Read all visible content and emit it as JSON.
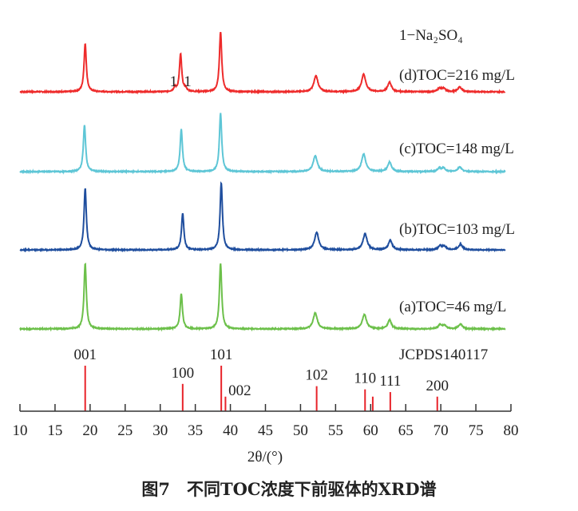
{
  "chart_data": {
    "type": "line",
    "caption": "图7　不同TOC浓度下前驱体的XRD谱",
    "xlabel": "2θ/(°)",
    "ylabel": "",
    "xlim": [
      10,
      80
    ],
    "xticks": [
      10,
      15,
      20,
      25,
      30,
      35,
      40,
      45,
      50,
      55,
      60,
      65,
      70,
      75,
      80
    ],
    "grid": false,
    "phase_label": "1−Na₂SO₄",
    "series": [
      {
        "name": "(d)TOC=216 mg/L",
        "color": "#ee2b2b",
        "peaks": [
          [
            19.3,
            60
          ],
          [
            32.1,
            5
          ],
          [
            32.9,
            47
          ],
          [
            33.6,
            4
          ],
          [
            38.6,
            75
          ],
          [
            52.2,
            20
          ],
          [
            59.0,
            22
          ],
          [
            62.7,
            12
          ],
          [
            69.8,
            4
          ],
          [
            70.4,
            4
          ],
          [
            72.7,
            6
          ]
        ],
        "annotations": [
          {
            "x": 31.9,
            "text": "1"
          },
          {
            "x": 33.9,
            "text": "1"
          }
        ]
      },
      {
        "name": "(c)TOC=148 mg/L",
        "color": "#5ec6d6",
        "peaks": [
          [
            19.2,
            58
          ],
          [
            33.0,
            53
          ],
          [
            38.6,
            73
          ],
          [
            52.1,
            20
          ],
          [
            59.0,
            22
          ],
          [
            62.7,
            12
          ],
          [
            69.8,
            4
          ],
          [
            70.4,
            4
          ],
          [
            72.7,
            6
          ]
        ]
      },
      {
        "name": "(b)TOC=103 mg/L",
        "color": "#1f4e9e",
        "peaks": [
          [
            19.3,
            77
          ],
          [
            33.2,
            46
          ],
          [
            38.7,
            84
          ],
          [
            52.3,
            22
          ],
          [
            59.2,
            20
          ],
          [
            62.8,
            12
          ],
          [
            69.9,
            5
          ],
          [
            70.5,
            4
          ],
          [
            72.8,
            7
          ]
        ]
      },
      {
        "name": "(a)TOC=46 mg/L",
        "color": "#6cc04a",
        "peaks": [
          [
            19.3,
            82
          ],
          [
            33.0,
            44
          ],
          [
            38.6,
            82
          ],
          [
            52.1,
            20
          ],
          [
            59.1,
            18
          ],
          [
            62.7,
            11
          ],
          [
            69.9,
            5
          ],
          [
            70.5,
            4
          ],
          [
            72.8,
            6
          ]
        ]
      }
    ],
    "reference": {
      "name": "JCPDS140117",
      "color": "#e8232a",
      "lines": [
        {
          "x": 19.3,
          "intensity": 100,
          "hkl": "001"
        },
        {
          "x": 33.2,
          "intensity": 60,
          "hkl": "100"
        },
        {
          "x": 38.7,
          "intensity": 100,
          "hkl": "101"
        },
        {
          "x": 39.3,
          "intensity": 32,
          "hkl": "002"
        },
        {
          "x": 52.3,
          "intensity": 55,
          "hkl": "102"
        },
        {
          "x": 59.2,
          "intensity": 48,
          "hkl": "110"
        },
        {
          "x": 60.3,
          "intensity": 32,
          "hkl": ""
        },
        {
          "x": 62.8,
          "intensity": 42,
          "hkl": "111"
        },
        {
          "x": 69.5,
          "intensity": 32,
          "hkl": "200"
        }
      ]
    }
  }
}
